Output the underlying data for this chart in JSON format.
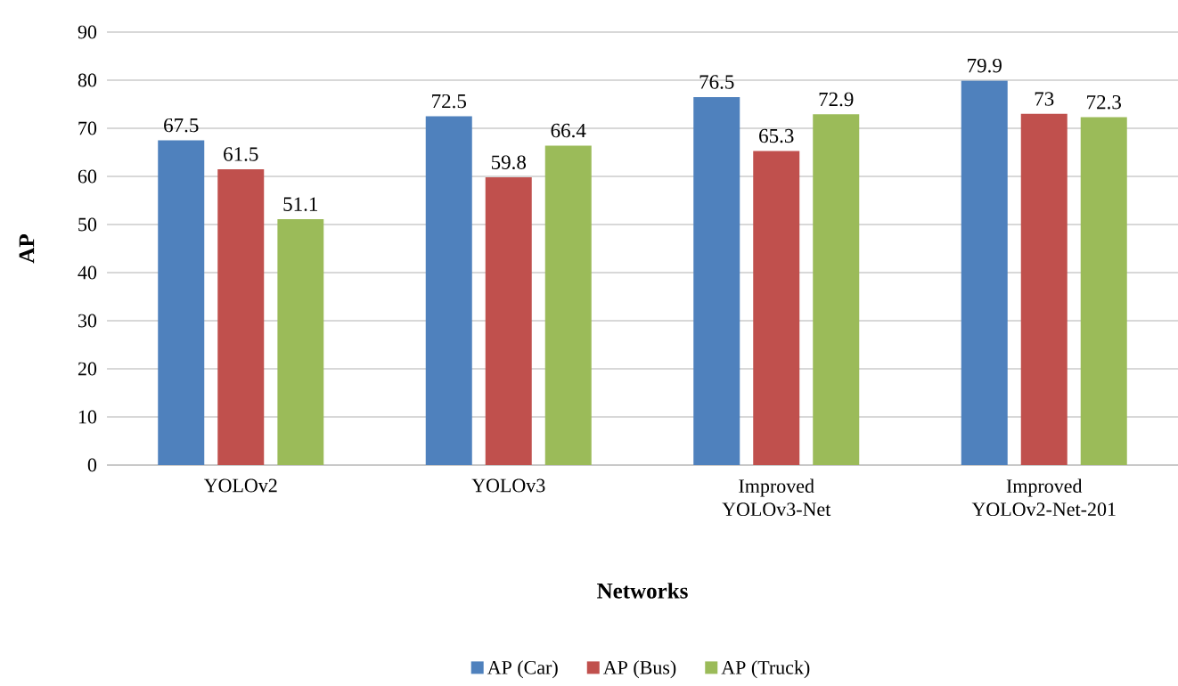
{
  "chart_data": {
    "type": "bar",
    "xlabel": "Networks",
    "ylabel": "AP",
    "categories": [
      "YOLOv2",
      "YOLOv3",
      "Improved YOLOv3-Net",
      "Improved YOLOv2-Net-201"
    ],
    "series": [
      {
        "name": "AP (Car)",
        "color": "#4f81bd",
        "values": [
          67.5,
          72.5,
          76.5,
          79.9
        ]
      },
      {
        "name": "AP (Bus)",
        "color": "#c0504d",
        "values": [
          61.5,
          59.8,
          65.3,
          73
        ]
      },
      {
        "name": "AP (Truck)",
        "color": "#9bbb59",
        "values": [
          51.1,
          66.4,
          72.9,
          72.3
        ]
      }
    ],
    "ylim": [
      0,
      90
    ],
    "yticks": [
      0,
      10,
      20,
      30,
      40,
      50,
      60,
      70,
      80,
      90
    ],
    "grid": "y",
    "legend": "bottom",
    "data_labels": true
  }
}
